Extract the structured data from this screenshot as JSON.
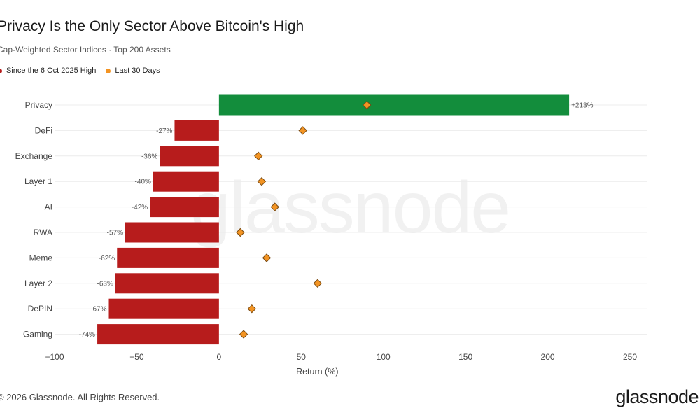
{
  "title": "Privacy Is the Only Sector Above Bitcoin's High",
  "subtitle": "Cap-Weighted Sector Indices · Top 200 Assets",
  "legend": {
    "series1": "Since the 6 Oct 2025 High",
    "series2": "Last 30 Days"
  },
  "footer": {
    "copyright": "© 2026 Glassnode. All Rights Reserved.",
    "brand": "glassnode"
  },
  "watermark": "glassnode",
  "colors": {
    "positive": "#138d3c",
    "negative": "#b71c1c",
    "marker": "#f39423",
    "marker_stroke": "#7a4a10"
  },
  "chart_data": {
    "type": "bar",
    "orientation": "horizontal",
    "categories": [
      "Privacy",
      "DeFi",
      "Exchange",
      "Layer 1",
      "AI",
      "RWA",
      "Meme",
      "Layer 2",
      "DePIN",
      "Gaming"
    ],
    "series": [
      {
        "name": "Since the 6 Oct 2025 High",
        "kind": "bar",
        "values": [
          213,
          -27,
          -36,
          -40,
          -42,
          -57,
          -62,
          -63,
          -67,
          -74
        ],
        "labels": [
          "+213%",
          "-27%",
          "-36%",
          "-40%",
          "-42%",
          "-57%",
          "-62%",
          "-63%",
          "-67%",
          "-74%"
        ]
      },
      {
        "name": "Last 30 Days",
        "kind": "diamond",
        "values": [
          90,
          51,
          24,
          26,
          34,
          13,
          29,
          60,
          20,
          15
        ]
      }
    ],
    "xlabel": "Return (%)",
    "xlim": [
      -100,
      250
    ],
    "xticks": [
      -100,
      -50,
      0,
      50,
      100,
      150,
      200,
      250
    ],
    "xtick_labels": [
      "−100",
      "−50",
      "0",
      "50",
      "100",
      "150",
      "200",
      "250"
    ],
    "grid": true,
    "legend_position": "top-left"
  }
}
